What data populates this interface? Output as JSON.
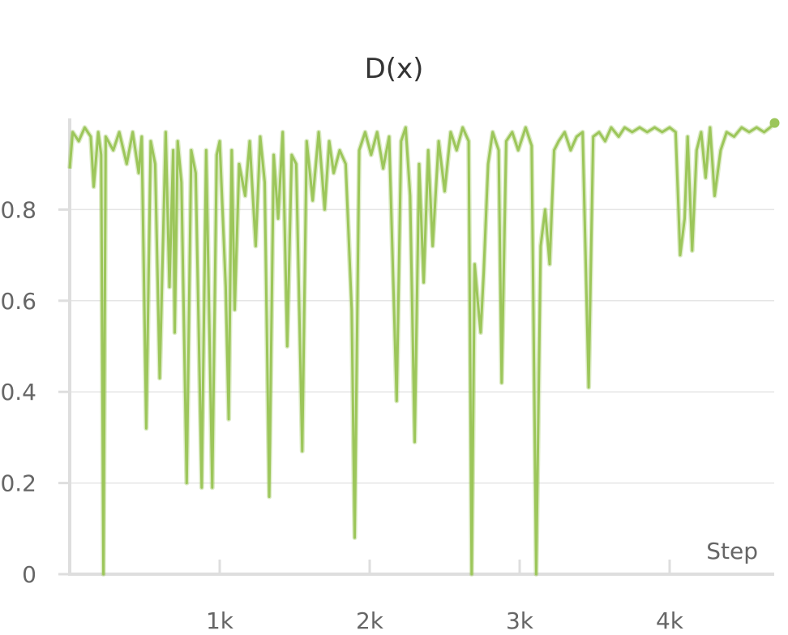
{
  "chart_data": {
    "type": "line",
    "title": "D(x)",
    "xlabel": "Step",
    "ylabel": "",
    "xlim": [
      0,
      4700
    ],
    "ylim": [
      0,
      1.0
    ],
    "x_ticks": [
      {
        "value": 1000,
        "label": "1k"
      },
      {
        "value": 2000,
        "label": "2k"
      },
      {
        "value": 3000,
        "label": "3k"
      },
      {
        "value": 4000,
        "label": "4k"
      }
    ],
    "y_ticks": [
      {
        "value": 0,
        "label": "0"
      },
      {
        "value": 0.2,
        "label": "0.2"
      },
      {
        "value": 0.4,
        "label": "0.4"
      },
      {
        "value": 0.6,
        "label": "0.6"
      },
      {
        "value": 0.8,
        "label": "0.8"
      }
    ],
    "grid": true,
    "line_color": "#9cc65a",
    "series": [
      {
        "name": "",
        "points": [
          [
            0,
            0.89
          ],
          [
            20,
            0.97
          ],
          [
            60,
            0.95
          ],
          [
            100,
            0.98
          ],
          [
            140,
            0.96
          ],
          [
            160,
            0.85
          ],
          [
            190,
            0.97
          ],
          [
            210,
            0.92
          ],
          [
            225,
            0.0
          ],
          [
            240,
            0.96
          ],
          [
            290,
            0.93
          ],
          [
            330,
            0.97
          ],
          [
            380,
            0.9
          ],
          [
            420,
            0.97
          ],
          [
            460,
            0.88
          ],
          [
            480,
            0.96
          ],
          [
            510,
            0.32
          ],
          [
            540,
            0.95
          ],
          [
            570,
            0.9
          ],
          [
            600,
            0.43
          ],
          [
            640,
            0.97
          ],
          [
            665,
            0.63
          ],
          [
            690,
            0.93
          ],
          [
            700,
            0.53
          ],
          [
            720,
            0.95
          ],
          [
            745,
            0.86
          ],
          [
            780,
            0.2
          ],
          [
            810,
            0.93
          ],
          [
            840,
            0.88
          ],
          [
            880,
            0.19
          ],
          [
            910,
            0.93
          ],
          [
            950,
            0.19
          ],
          [
            980,
            0.92
          ],
          [
            1000,
            0.95
          ],
          [
            1040,
            0.63
          ],
          [
            1060,
            0.34
          ],
          [
            1080,
            0.93
          ],
          [
            1100,
            0.58
          ],
          [
            1130,
            0.9
          ],
          [
            1170,
            0.83
          ],
          [
            1200,
            0.95
          ],
          [
            1240,
            0.72
          ],
          [
            1270,
            0.96
          ],
          [
            1300,
            0.86
          ],
          [
            1330,
            0.17
          ],
          [
            1360,
            0.92
          ],
          [
            1390,
            0.78
          ],
          [
            1420,
            0.97
          ],
          [
            1450,
            0.5
          ],
          [
            1480,
            0.92
          ],
          [
            1510,
            0.9
          ],
          [
            1550,
            0.27
          ],
          [
            1580,
            0.95
          ],
          [
            1620,
            0.82
          ],
          [
            1660,
            0.97
          ],
          [
            1700,
            0.8
          ],
          [
            1730,
            0.95
          ],
          [
            1760,
            0.88
          ],
          [
            1800,
            0.93
          ],
          [
            1840,
            0.9
          ],
          [
            1880,
            0.58
          ],
          [
            1900,
            0.08
          ],
          [
            1930,
            0.93
          ],
          [
            1970,
            0.97
          ],
          [
            2010,
            0.92
          ],
          [
            2050,
            0.97
          ],
          [
            2090,
            0.89
          ],
          [
            2130,
            0.96
          ],
          [
            2180,
            0.38
          ],
          [
            2210,
            0.95
          ],
          [
            2240,
            0.98
          ],
          [
            2270,
            0.83
          ],
          [
            2300,
            0.29
          ],
          [
            2330,
            0.9
          ],
          [
            2360,
            0.64
          ],
          [
            2390,
            0.93
          ],
          [
            2420,
            0.72
          ],
          [
            2460,
            0.95
          ],
          [
            2500,
            0.84
          ],
          [
            2540,
            0.97
          ],
          [
            2580,
            0.93
          ],
          [
            2620,
            0.98
          ],
          [
            2660,
            0.95
          ],
          [
            2680,
            0.0
          ],
          [
            2700,
            0.68
          ],
          [
            2720,
            0.6
          ],
          [
            2740,
            0.53
          ],
          [
            2760,
            0.66
          ],
          [
            2790,
            0.9
          ],
          [
            2820,
            0.97
          ],
          [
            2860,
            0.93
          ],
          [
            2880,
            0.42
          ],
          [
            2910,
            0.95
          ],
          [
            2950,
            0.97
          ],
          [
            2990,
            0.93
          ],
          [
            3040,
            0.98
          ],
          [
            3080,
            0.94
          ],
          [
            3110,
            0.0
          ],
          [
            3140,
            0.72
          ],
          [
            3170,
            0.8
          ],
          [
            3200,
            0.68
          ],
          [
            3230,
            0.93
          ],
          [
            3260,
            0.95
          ],
          [
            3300,
            0.97
          ],
          [
            3340,
            0.93
          ],
          [
            3380,
            0.96
          ],
          [
            3420,
            0.97
          ],
          [
            3460,
            0.41
          ],
          [
            3490,
            0.96
          ],
          [
            3530,
            0.97
          ],
          [
            3570,
            0.95
          ],
          [
            3610,
            0.98
          ],
          [
            3660,
            0.96
          ],
          [
            3700,
            0.98
          ],
          [
            3750,
            0.97
          ],
          [
            3800,
            0.98
          ],
          [
            3850,
            0.97
          ],
          [
            3900,
            0.98
          ],
          [
            3950,
            0.97
          ],
          [
            4000,
            0.98
          ],
          [
            4040,
            0.97
          ],
          [
            4070,
            0.7
          ],
          [
            4100,
            0.78
          ],
          [
            4120,
            0.96
          ],
          [
            4150,
            0.71
          ],
          [
            4180,
            0.93
          ],
          [
            4210,
            0.97
          ],
          [
            4240,
            0.87
          ],
          [
            4270,
            0.98
          ],
          [
            4300,
            0.83
          ],
          [
            4340,
            0.93
          ],
          [
            4380,
            0.97
          ],
          [
            4430,
            0.96
          ],
          [
            4480,
            0.98
          ],
          [
            4530,
            0.97
          ],
          [
            4580,
            0.98
          ],
          [
            4630,
            0.97
          ],
          [
            4670,
            0.98
          ],
          [
            4700,
            0.99
          ]
        ]
      }
    ]
  }
}
